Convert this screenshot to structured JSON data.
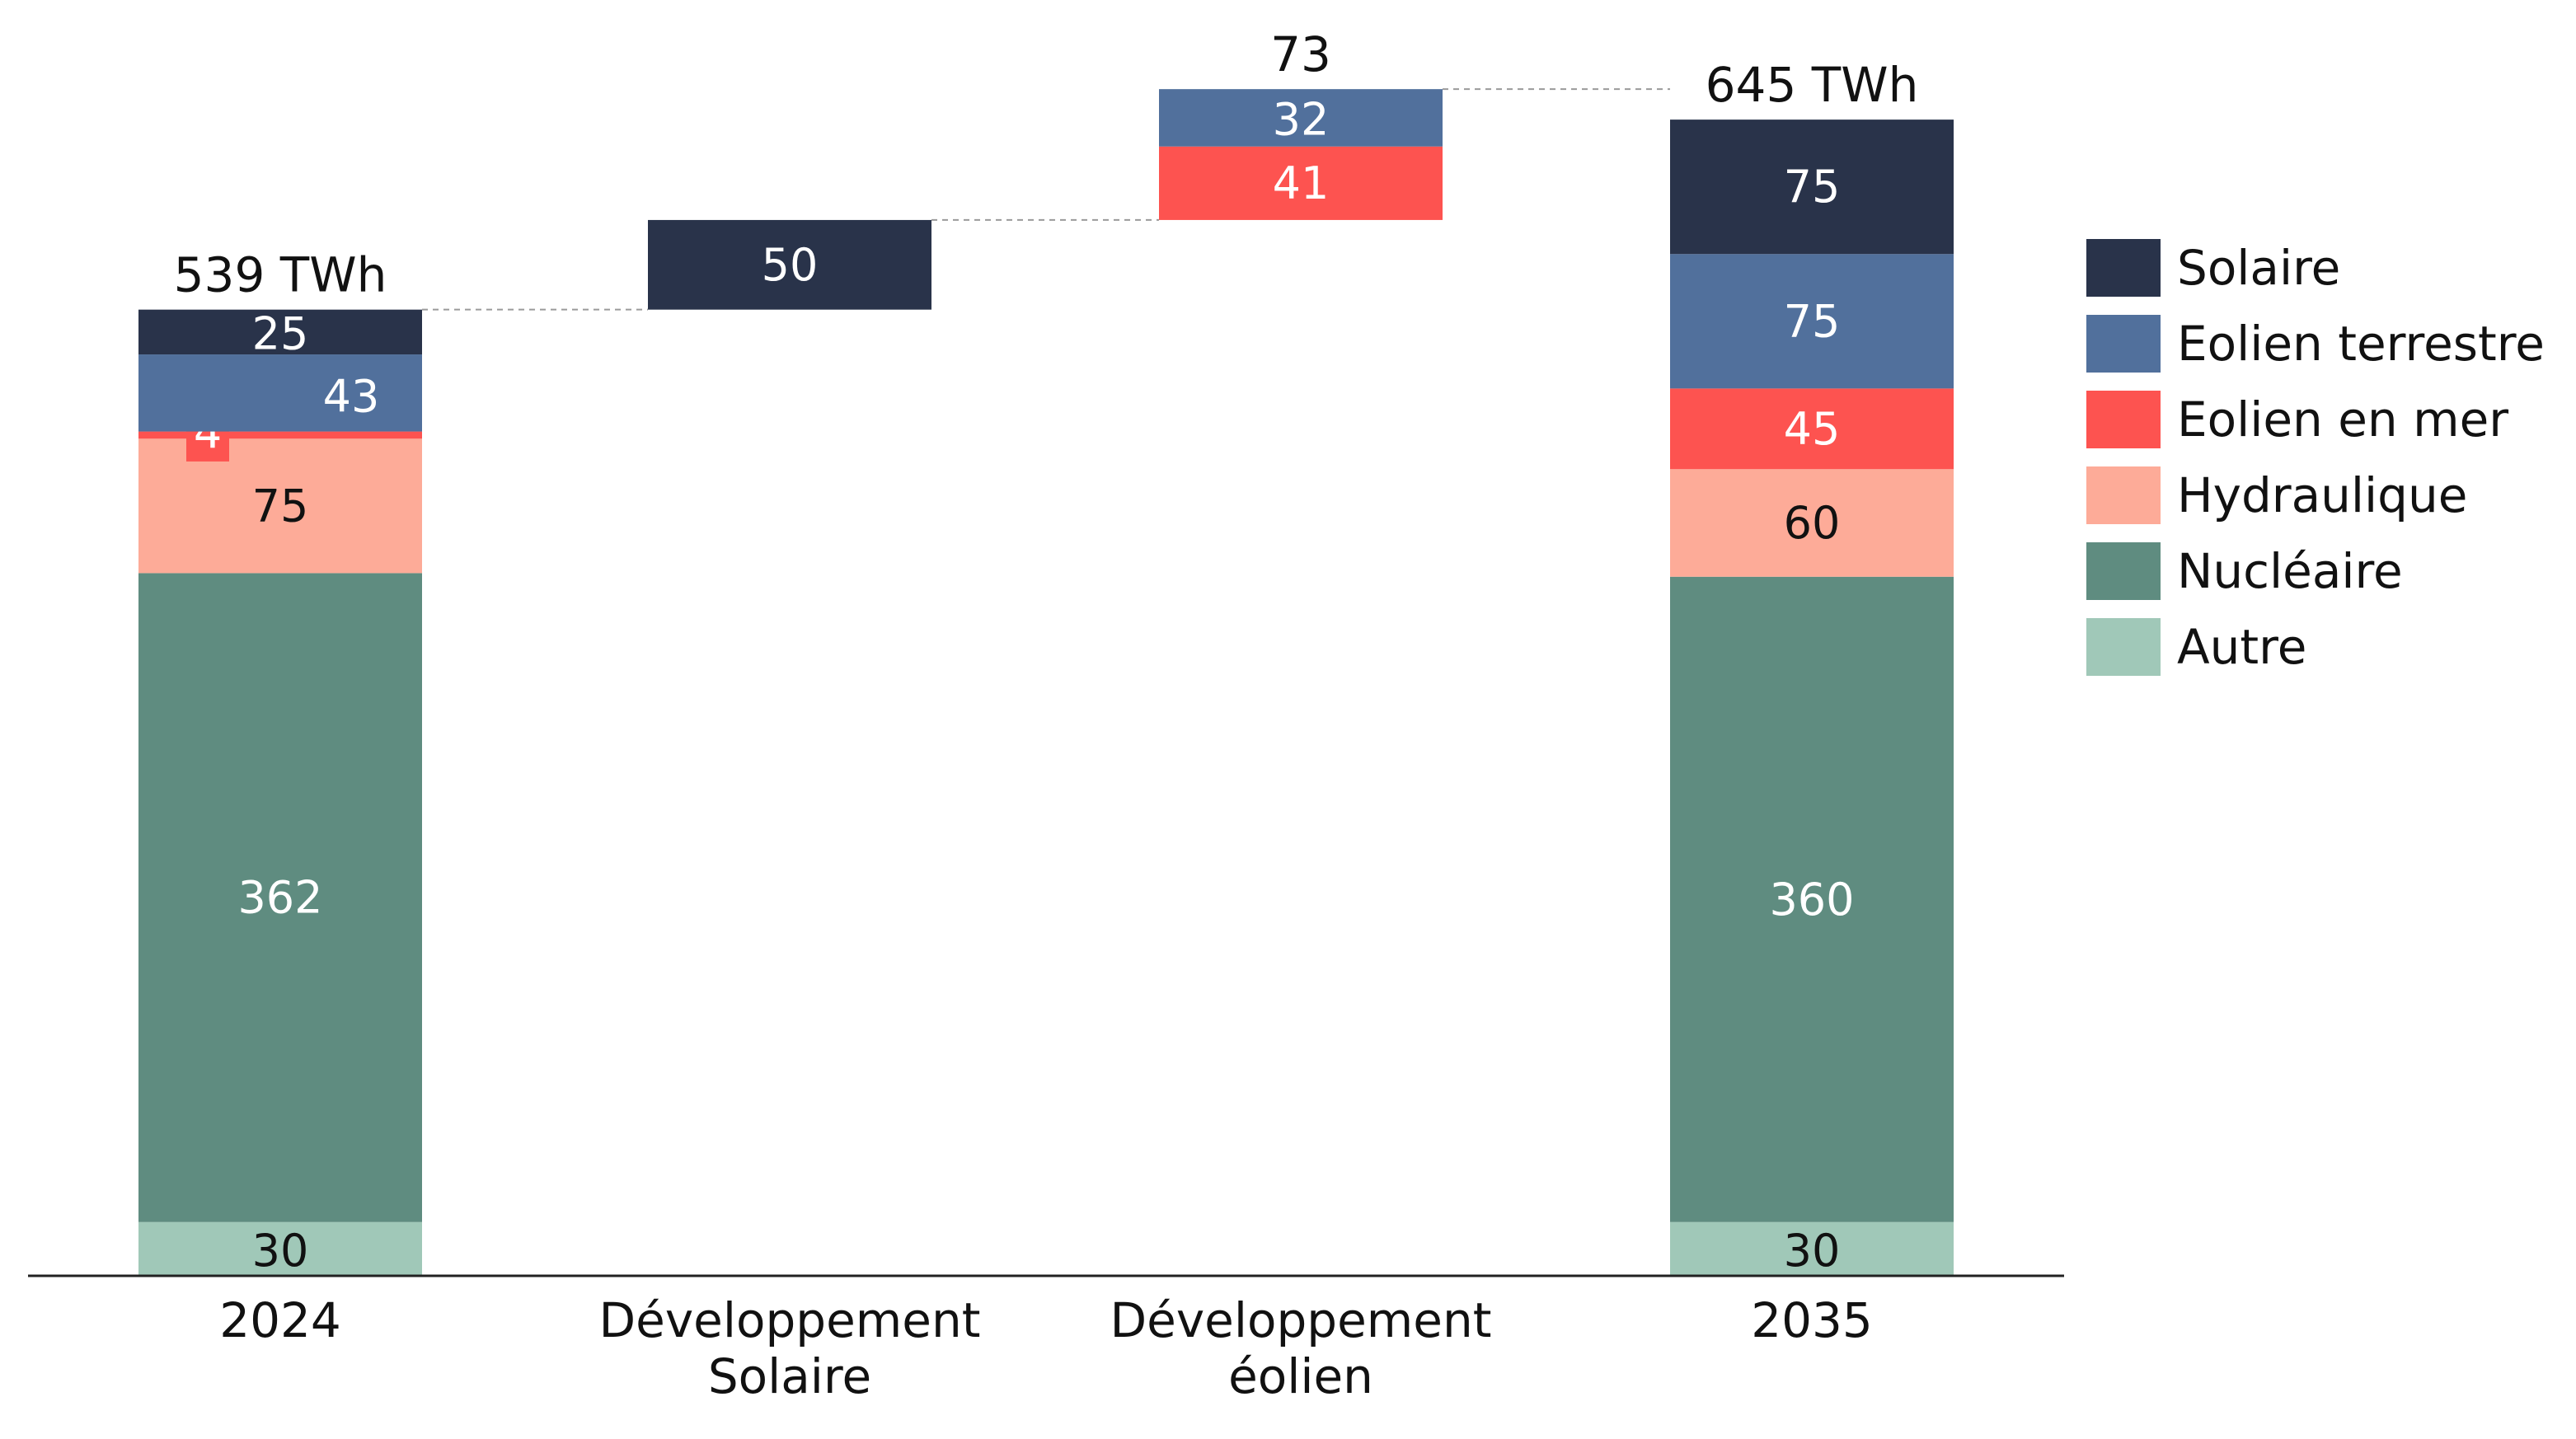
{
  "chart_data": {
    "type": "bar",
    "subtype": "waterfall",
    "unit": "TWh",
    "categories": [
      "2024",
      "Développement Solaire",
      "Développement éolien",
      "2035"
    ],
    "category_lines": [
      [
        "2024"
      ],
      [
        "Développement",
        "Solaire"
      ],
      [
        "Développement",
        "éolien"
      ],
      [
        "2035"
      ]
    ],
    "series": [
      {
        "name": "Solaire",
        "color": "#29334a"
      },
      {
        "name": "Eolien terrestre",
        "color": "#51709c"
      },
      {
        "name": "Eolien en mer",
        "color": "#fd5350"
      },
      {
        "name": "Hydraulique",
        "color": "#fdab98"
      },
      {
        "name": "Nucléaire",
        "color": "#5f8c80"
      },
      {
        "name": "Autre",
        "color": "#a0c8b8"
      }
    ],
    "bars": [
      {
        "category": "2024",
        "kind": "total",
        "base": 0,
        "total_label": "539 TWh",
        "segments": [
          {
            "series": "Autre",
            "value": 30,
            "label": "30"
          },
          {
            "series": "Nucléaire",
            "value": 362,
            "label": "362"
          },
          {
            "series": "Hydraulique",
            "value": 75,
            "label": "75"
          },
          {
            "series": "Eolien en mer",
            "value": 4,
            "label": "4"
          },
          {
            "series": "Eolien terrestre",
            "value": 43,
            "label": "43"
          },
          {
            "series": "Solaire",
            "value": 25,
            "label": "25"
          }
        ]
      },
      {
        "category": "Développement Solaire",
        "kind": "delta",
        "base": 539,
        "segments": [
          {
            "series": "Solaire",
            "value": 50,
            "label": "50"
          }
        ]
      },
      {
        "category": "Développement éolien",
        "kind": "delta",
        "base": 589,
        "total_label": "73",
        "segments": [
          {
            "series": "Eolien en mer",
            "value": 41,
            "label": "41"
          },
          {
            "series": "Eolien terrestre",
            "value": 32,
            "label": "32"
          }
        ]
      },
      {
        "category": "2035",
        "kind": "total",
        "base": 0,
        "total_label": "645 TWh",
        "segments": [
          {
            "series": "Autre",
            "value": 30,
            "label": "30"
          },
          {
            "series": "Nucléaire",
            "value": 360,
            "label": "360"
          },
          {
            "series": "Hydraulique",
            "value": 60,
            "label": "60"
          },
          {
            "series": "Eolien en mer",
            "value": 45,
            "label": "45"
          },
          {
            "series": "Eolien terrestre",
            "value": 75,
            "label": "75"
          },
          {
            "series": "Solaire",
            "value": 75,
            "label": "75"
          }
        ]
      }
    ],
    "ylim": [
      0,
      662
    ],
    "grid": false,
    "legend_position": "right"
  }
}
